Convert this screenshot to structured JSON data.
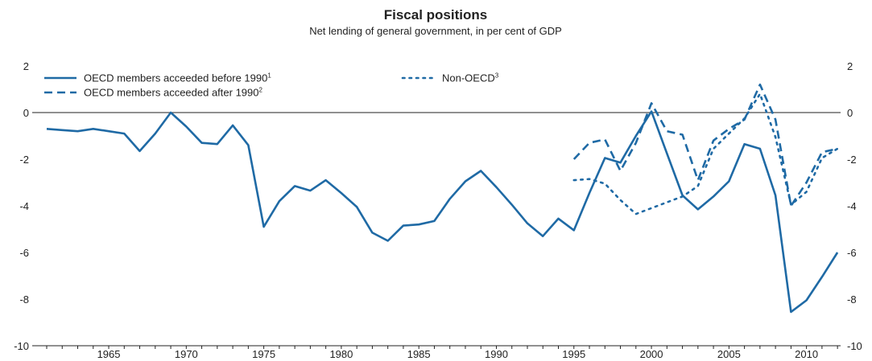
{
  "chart_data": {
    "type": "line",
    "title": "Fiscal positions",
    "subtitle": "Net lending of general government, in per cent of GDP",
    "xlabel": "",
    "ylabel": "",
    "xlim": [
      1961,
      2012
    ],
    "ylim": [
      -10,
      2
    ],
    "y_ticks": [
      2,
      0,
      -2,
      -4,
      -6,
      -8,
      -10
    ],
    "x_ticks": [
      1965,
      1970,
      1975,
      1980,
      1985,
      1990,
      1995,
      2000,
      2005,
      2010
    ],
    "zero_line": true,
    "grid": false,
    "legend_position": "top-left",
    "colors": {
      "series": "#1f6aa5",
      "axis": "#222222",
      "zero": "#222222"
    },
    "series": [
      {
        "name": "OECD members acceeded before 1990",
        "note": "1",
        "style": "solid",
        "x": [
          1961,
          1962,
          1963,
          1964,
          1965,
          1966,
          1967,
          1968,
          1969,
          1970,
          1971,
          1972,
          1973,
          1974,
          1975,
          1976,
          1977,
          1978,
          1979,
          1980,
          1981,
          1982,
          1983,
          1984,
          1985,
          1986,
          1987,
          1988,
          1989,
          1990,
          1991,
          1992,
          1993,
          1994,
          1995,
          1996,
          1997,
          1998,
          1999,
          2000,
          2001,
          2002,
          2003,
          2004,
          2005,
          2006,
          2007,
          2008,
          2009,
          2010,
          2011,
          2012
        ],
        "y": [
          -0.7,
          -0.75,
          -0.8,
          -0.7,
          -0.8,
          -0.9,
          -1.65,
          -0.9,
          0.0,
          -0.6,
          -1.3,
          -1.35,
          -0.55,
          -1.4,
          -4.9,
          -3.8,
          -3.15,
          -3.35,
          -2.9,
          -3.45,
          -4.05,
          -5.15,
          -5.5,
          -4.85,
          -4.8,
          -4.65,
          -3.7,
          -2.95,
          -2.5,
          -3.2,
          -3.95,
          -4.75,
          -5.3,
          -4.55,
          -5.05,
          -3.45,
          -1.95,
          -2.15,
          -1.0,
          0.05,
          -1.75,
          -3.55,
          -4.15,
          -3.6,
          -2.95,
          -1.35,
          -1.55,
          -3.55,
          -8.55,
          -8.05,
          -7.05,
          -6.0
        ]
      },
      {
        "name": "OECD members acceeded after 1990",
        "note": "2",
        "style": "dashed",
        "x": [
          1995,
          1996,
          1997,
          1998,
          1999,
          2000,
          2001,
          2002,
          2003,
          2004,
          2005,
          2006,
          2007,
          2008,
          2009,
          2010,
          2011,
          2012
        ],
        "y": [
          -2.0,
          -1.3,
          -1.15,
          -2.5,
          -1.3,
          0.4,
          -0.8,
          -0.95,
          -2.9,
          -1.2,
          -0.7,
          -0.3,
          1.2,
          -0.3,
          -4.0,
          -3.0,
          -1.7,
          -1.55
        ]
      },
      {
        "name": "Non-OECD",
        "note": "3",
        "style": "dotted",
        "x": [
          1995,
          1996,
          1997,
          1998,
          1999,
          2000,
          2001,
          2002,
          2003,
          2004,
          2005,
          2006,
          2007,
          2008,
          2009,
          2010,
          2011,
          2012
        ],
        "y": [
          -2.9,
          -2.85,
          -3.05,
          -3.75,
          -4.35,
          -4.1,
          -3.85,
          -3.6,
          -3.15,
          -1.55,
          -0.9,
          -0.25,
          0.8,
          -1.05,
          -3.95,
          -3.4,
          -1.95,
          -1.55
        ]
      }
    ]
  }
}
